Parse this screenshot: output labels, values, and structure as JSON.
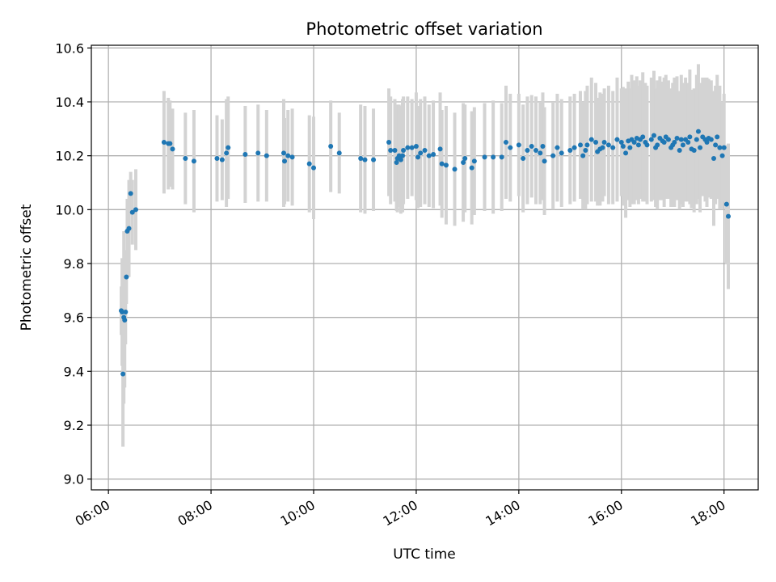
{
  "chart_data": {
    "type": "scatter",
    "title": "Photometric offset variation",
    "xlabel": "UTC time",
    "ylabel": "Photometric offset",
    "x_unit": "hours UTC",
    "xlim": [
      "05:40",
      "18:40"
    ],
    "ylim": [
      8.96,
      10.61
    ],
    "x_ticks": [
      "06:00",
      "08:00",
      "10:00",
      "12:00",
      "14:00",
      "16:00",
      "18:00"
    ],
    "y_ticks": [
      "9.0",
      "9.2",
      "9.4",
      "9.6",
      "9.8",
      "10.0",
      "10.2",
      "10.4",
      "10.6"
    ],
    "grid": true,
    "colors": {
      "points": "#1f77b4",
      "errorbars": "#d3d3d3",
      "grid": "#b0b0b0"
    },
    "series": [
      {
        "x": [
          "06:15",
          "06:16",
          "06:17",
          "06:18",
          "06:19",
          "06:20",
          "06:21",
          "06:22",
          "06:24",
          "06:26",
          "06:28",
          "06:32",
          "07:05",
          "07:10",
          "07:12",
          "07:15",
          "07:30",
          "07:40",
          "08:07",
          "08:13",
          "08:18",
          "08:20",
          "08:40",
          "08:55",
          "09:05",
          "09:25",
          "09:26",
          "09:30",
          "09:35",
          "09:55",
          "10:00",
          "10:20",
          "10:30",
          "10:55",
          "11:00",
          "11:10",
          "11:28",
          "11:30",
          "11:35",
          "11:37",
          "11:38",
          "11:40",
          "11:42",
          "11:44",
          "11:45",
          "11:50",
          "11:55",
          "12:00",
          "12:02",
          "12:05",
          "12:10",
          "12:15",
          "12:20",
          "12:28",
          "12:30",
          "12:35",
          "12:45",
          "12:55",
          "12:57",
          "13:05",
          "13:08",
          "13:20",
          "13:30",
          "13:40",
          "13:45",
          "13:50",
          "14:00",
          "14:05",
          "14:10",
          "14:15",
          "14:20",
          "14:25",
          "14:28",
          "14:30",
          "14:40",
          "14:45",
          "14:50",
          "15:00",
          "15:05",
          "15:12",
          "15:15",
          "15:18",
          "15:20",
          "15:25",
          "15:30",
          "15:32",
          "15:35",
          "15:38",
          "15:40",
          "15:45",
          "15:50",
          "15:55",
          "16:00",
          "16:02",
          "16:05",
          "16:08",
          "16:10",
          "16:12",
          "16:15",
          "16:18",
          "16:20",
          "16:22",
          "16:25",
          "16:28",
          "16:30",
          "16:35",
          "16:38",
          "16:40",
          "16:42",
          "16:45",
          "16:48",
          "16:50",
          "16:52",
          "16:55",
          "16:58",
          "17:00",
          "17:02",
          "17:05",
          "17:08",
          "17:10",
          "17:12",
          "17:15",
          "17:18",
          "17:20",
          "17:22",
          "17:25",
          "17:28",
          "17:30",
          "17:32",
          "17:35",
          "17:38",
          "17:40",
          "17:42",
          "17:45",
          "17:48",
          "17:50",
          "17:52",
          "17:55",
          "17:58",
          "18:00",
          "18:03",
          "18:05"
        ],
        "y": [
          9.625,
          9.62,
          9.39,
          9.6,
          9.59,
          9.62,
          9.75,
          9.92,
          9.93,
          10.06,
          9.99,
          10.0,
          10.25,
          10.245,
          10.245,
          10.225,
          10.19,
          10.18,
          10.19,
          10.185,
          10.21,
          10.23,
          10.205,
          10.21,
          10.2,
          10.21,
          10.18,
          10.2,
          10.195,
          10.17,
          10.155,
          10.235,
          10.21,
          10.19,
          10.185,
          10.185,
          10.25,
          10.22,
          10.22,
          10.175,
          10.19,
          10.2,
          10.185,
          10.2,
          10.22,
          10.23,
          10.23,
          10.235,
          10.195,
          10.21,
          10.22,
          10.2,
          10.205,
          10.225,
          10.17,
          10.165,
          10.15,
          10.175,
          10.19,
          10.155,
          10.18,
          10.195,
          10.195,
          10.195,
          10.25,
          10.23,
          10.24,
          10.19,
          10.22,
          10.235,
          10.22,
          10.21,
          10.235,
          10.18,
          10.2,
          10.23,
          10.21,
          10.22,
          10.23,
          10.24,
          10.2,
          10.22,
          10.24,
          10.26,
          10.25,
          10.215,
          10.225,
          10.23,
          10.25,
          10.24,
          10.23,
          10.26,
          10.25,
          10.235,
          10.21,
          10.255,
          10.23,
          10.26,
          10.25,
          10.265,
          10.24,
          10.26,
          10.27,
          10.25,
          10.24,
          10.26,
          10.275,
          10.23,
          10.24,
          10.265,
          10.255,
          10.25,
          10.27,
          10.26,
          10.23,
          10.24,
          10.25,
          10.265,
          10.22,
          10.26,
          10.24,
          10.26,
          10.25,
          10.27,
          10.225,
          10.22,
          10.26,
          10.29,
          10.23,
          10.27,
          10.26,
          10.25,
          10.265,
          10.26,
          10.19,
          10.24,
          10.27,
          10.23,
          10.2,
          10.23,
          10.02,
          9.975
        ],
        "err": [
          0.09,
          0.2,
          0.27,
          0.32,
          0.25,
          0.12,
          0.1,
          0.12,
          0.18,
          0.08,
          0.12,
          0.15,
          0.19,
          0.17,
          0.16,
          0.15,
          0.17,
          0.19,
          0.16,
          0.15,
          0.2,
          0.19,
          0.18,
          0.18,
          0.17,
          0.2,
          0.16,
          0.17,
          0.18,
          0.18,
          0.19,
          0.17,
          0.15,
          0.2,
          0.2,
          0.19,
          0.2,
          0.2,
          0.19,
          0.18,
          0.2,
          0.19,
          0.2,
          0.21,
          0.2,
          0.19,
          0.18,
          0.2,
          0.19,
          0.2,
          0.2,
          0.19,
          0.2,
          0.21,
          0.2,
          0.22,
          0.21,
          0.22,
          0.2,
          0.21,
          0.2,
          0.2,
          0.21,
          0.2,
          0.21,
          0.2,
          0.19,
          0.2,
          0.2,
          0.19,
          0.2,
          0.19,
          0.2,
          0.2,
          0.2,
          0.2,
          0.2,
          0.2,
          0.2,
          0.2,
          0.2,
          0.22,
          0.22,
          0.23,
          0.22,
          0.2,
          0.21,
          0.2,
          0.2,
          0.22,
          0.21,
          0.23,
          0.2,
          0.22,
          0.24,
          0.22,
          0.22,
          0.24,
          0.23,
          0.23,
          0.22,
          0.22,
          0.24,
          0.22,
          0.22,
          0.23,
          0.24,
          0.22,
          0.24,
          0.23,
          0.22,
          0.24,
          0.23,
          0.22,
          0.22,
          0.23,
          0.24,
          0.23,
          0.22,
          0.24,
          0.23,
          0.23,
          0.22,
          0.25,
          0.22,
          0.23,
          0.24,
          0.25,
          0.24,
          0.22,
          0.23,
          0.24,
          0.22,
          0.22,
          0.25,
          0.22,
          0.23,
          0.23,
          0.2,
          0.2,
          0.22,
          0.27
        ]
      }
    ]
  }
}
